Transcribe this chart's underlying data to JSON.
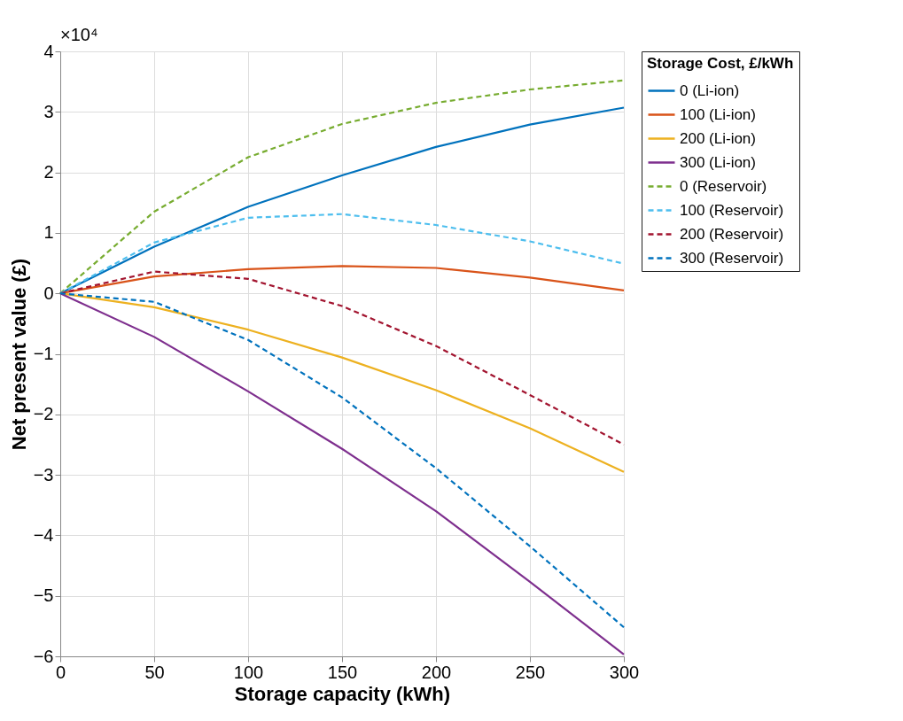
{
  "chart_data": {
    "type": "line",
    "xlabel": "Storage capacity (kWh)",
    "ylabel": "Net present value (£)",
    "legend_title": "Storage Cost, £/kWh",
    "annotations": [
      "×10⁴"
    ],
    "x": [
      0,
      50,
      100,
      150,
      200,
      250,
      300
    ],
    "xlim": [
      0,
      300
    ],
    "xticks": [
      0,
      50,
      100,
      150,
      200,
      250,
      300
    ],
    "ylim": [
      -6,
      4
    ],
    "yticks": [
      -6,
      -5,
      -4,
      -3,
      -2,
      -1,
      0,
      1,
      2,
      3,
      4
    ],
    "grid": true,
    "legend": "right",
    "marker": "none",
    "series": [
      {
        "name": "0 (Li-ion)",
        "color": "#0072bd",
        "line_style": "solid",
        "values": [
          0,
          0.77,
          1.43,
          1.95,
          2.42,
          2.79,
          3.07
        ]
      },
      {
        "name": "100 (Li-ion)",
        "color": "#d95319",
        "line_style": "solid",
        "values": [
          0,
          0.28,
          0.4,
          0.45,
          0.42,
          0.26,
          0.05
        ]
      },
      {
        "name": "200 (Li-ion)",
        "color": "#edb120",
        "line_style": "solid",
        "values": [
          0,
          -0.23,
          -0.6,
          -1.06,
          -1.6,
          -2.23,
          -2.95
        ]
      },
      {
        "name": "300 (Li-ion)",
        "color": "#7e2f8e",
        "line_style": "solid",
        "values": [
          0,
          -0.72,
          -1.62,
          -2.57,
          -3.6,
          -4.77,
          -5.97
        ]
      },
      {
        "name": "0 (Reservoir)",
        "color": "#77ac30",
        "line_style": "dashed",
        "values": [
          0,
          1.35,
          2.25,
          2.8,
          3.15,
          3.37,
          3.52
        ]
      },
      {
        "name": "100 (Reservoir)",
        "color": "#4dbeee",
        "line_style": "dashed",
        "values": [
          0,
          0.84,
          1.25,
          1.31,
          1.13,
          0.86,
          0.49
        ]
      },
      {
        "name": "200 (Reservoir)",
        "color": "#a2142f",
        "line_style": "dashed",
        "values": [
          0,
          0.36,
          0.24,
          -0.21,
          -0.87,
          -1.68,
          -2.5
        ]
      },
      {
        "name": "300 (Reservoir)",
        "color": "#0072bd",
        "line_style": "dashed",
        "values": [
          0,
          -0.14,
          -0.77,
          -1.72,
          -2.89,
          -4.18,
          -5.52
        ]
      }
    ]
  }
}
